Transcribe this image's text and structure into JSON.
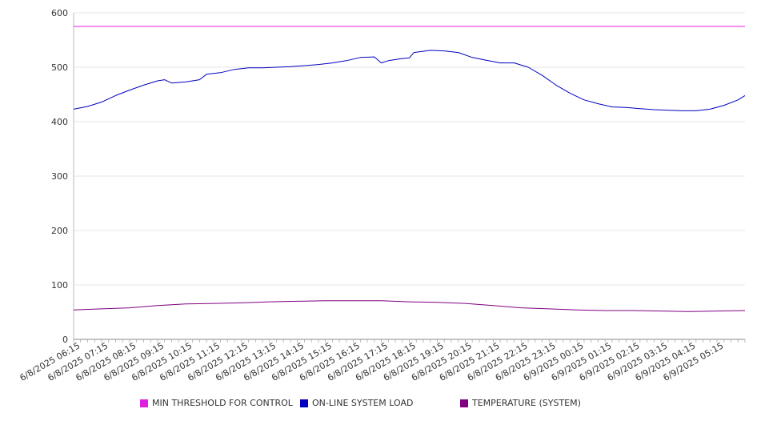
{
  "chart_data": {
    "type": "line",
    "ylim": [
      0,
      600
    ],
    "yticks": [
      "0",
      "100",
      "200",
      "300",
      "400",
      "500",
      "600"
    ],
    "grid": true,
    "legend_position": "bottom",
    "x_start": "6/8/2025 06:00",
    "x_end": "6/9/2025 06:00",
    "x_tick_labels": [
      "6/8/2025 06:15",
      "6/8/2025 07:15",
      "6/8/2025 08:15",
      "6/8/2025 09:15",
      "6/8/2025 10:15",
      "6/8/2025 11:15",
      "6/8/2025 12:15",
      "6/8/2025 13:15",
      "6/8/2025 14:15",
      "6/8/2025 15:15",
      "6/8/2025 16:15",
      "6/8/2025 17:15",
      "6/8/2025 18:15",
      "6/8/2025 19:15",
      "6/8/2025 20:15",
      "6/8/2025 21:15",
      "6/8/2025 22:15",
      "6/8/2025 23:15",
      "6/9/2025 00:15",
      "6/9/2025 01:15",
      "6/9/2025 02:15",
      "6/9/2025 03:15",
      "6/9/2025 04:15",
      "6/9/2025 05:15"
    ],
    "series": [
      {
        "name": "MIN THRESHOLD FOR CONTROL",
        "color": "#e020e0",
        "points": [
          [
            "6/8/2025 06:00",
            575
          ],
          [
            "6/9/2025 06:00",
            575
          ]
        ]
      },
      {
        "name": "ON-LINE SYSTEM LOAD",
        "color": "#0000c0",
        "points": [
          [
            "6/8/2025 06:00",
            423
          ],
          [
            "6/8/2025 06:30",
            428
          ],
          [
            "6/8/2025 07:00",
            436
          ],
          [
            "6/8/2025 07:30",
            448
          ],
          [
            "6/8/2025 08:00",
            458
          ],
          [
            "6/8/2025 08:30",
            467
          ],
          [
            "6/8/2025 09:00",
            475
          ],
          [
            "6/8/2025 09:15",
            477
          ],
          [
            "6/8/2025 09:30",
            471
          ],
          [
            "6/8/2025 10:00",
            473
          ],
          [
            "6/8/2025 10:30",
            477
          ],
          [
            "6/8/2025 10:45",
            487
          ],
          [
            "6/8/2025 11:15",
            490
          ],
          [
            "6/8/2025 11:45",
            496
          ],
          [
            "6/8/2025 12:15",
            499
          ],
          [
            "6/8/2025 12:45",
            499
          ],
          [
            "6/8/2025 13:15",
            500
          ],
          [
            "6/8/2025 13:45",
            501
          ],
          [
            "6/8/2025 14:15",
            503
          ],
          [
            "6/8/2025 14:45",
            505
          ],
          [
            "6/8/2025 15:15",
            508
          ],
          [
            "6/8/2025 15:45",
            512
          ],
          [
            "6/8/2025 16:15",
            518
          ],
          [
            "6/8/2025 16:45",
            519
          ],
          [
            "6/8/2025 17:00",
            508
          ],
          [
            "6/8/2025 17:15",
            512
          ],
          [
            "6/8/2025 17:45",
            516
          ],
          [
            "6/8/2025 18:00",
            517
          ],
          [
            "6/8/2025 18:10",
            527
          ],
          [
            "6/8/2025 18:45",
            531
          ],
          [
            "6/8/2025 19:15",
            530
          ],
          [
            "6/8/2025 19:45",
            527
          ],
          [
            "6/8/2025 20:15",
            518
          ],
          [
            "6/8/2025 20:45",
            513
          ],
          [
            "6/8/2025 21:15",
            508
          ],
          [
            "6/8/2025 21:45",
            508
          ],
          [
            "6/8/2025 22:15",
            500
          ],
          [
            "6/8/2025 22:45",
            485
          ],
          [
            "6/8/2025 23:15",
            467
          ],
          [
            "6/8/2025 23:45",
            452
          ],
          [
            "6/9/2025 00:15",
            440
          ],
          [
            "6/9/2025 00:45",
            433
          ],
          [
            "6/9/2025 01:15",
            427
          ],
          [
            "6/9/2025 01:45",
            426
          ],
          [
            "6/9/2025 02:15",
            424
          ],
          [
            "6/9/2025 02:45",
            422
          ],
          [
            "6/9/2025 03:15",
            421
          ],
          [
            "6/9/2025 03:45",
            420
          ],
          [
            "6/9/2025 04:15",
            420
          ],
          [
            "6/9/2025 04:45",
            423
          ],
          [
            "6/9/2025 05:15",
            430
          ],
          [
            "6/9/2025 05:45",
            440
          ],
          [
            "6/9/2025 06:00",
            448
          ]
        ]
      },
      {
        "name": "TEMPERATURE (SYSTEM)",
        "color": "#800080",
        "points": [
          [
            "6/8/2025 06:00",
            54
          ],
          [
            "6/8/2025 07:00",
            56
          ],
          [
            "6/8/2025 08:00",
            58
          ],
          [
            "6/8/2025 09:00",
            62
          ],
          [
            "6/8/2025 10:00",
            65
          ],
          [
            "6/8/2025 11:00",
            66
          ],
          [
            "6/8/2025 12:00",
            67
          ],
          [
            "6/8/2025 13:00",
            69
          ],
          [
            "6/8/2025 14:00",
            70
          ],
          [
            "6/8/2025 15:00",
            71
          ],
          [
            "6/8/2025 16:00",
            71
          ],
          [
            "6/8/2025 17:00",
            71
          ],
          [
            "6/8/2025 18:00",
            69
          ],
          [
            "6/8/2025 19:00",
            68
          ],
          [
            "6/8/2025 20:00",
            66
          ],
          [
            "6/8/2025 21:00",
            62
          ],
          [
            "6/8/2025 22:00",
            58
          ],
          [
            "6/8/2025 23:00",
            56
          ],
          [
            "6/9/2025 00:00",
            54
          ],
          [
            "6/9/2025 01:00",
            53
          ],
          [
            "6/9/2025 02:00",
            53
          ],
          [
            "6/9/2025 03:00",
            52
          ],
          [
            "6/9/2025 04:00",
            51
          ],
          [
            "6/9/2025 05:00",
            52
          ],
          [
            "6/9/2025 06:00",
            53
          ]
        ]
      }
    ]
  }
}
